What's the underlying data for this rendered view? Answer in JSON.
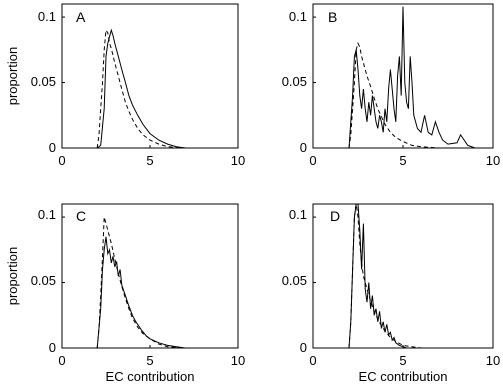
{
  "chart_data": [
    {
      "type": "line",
      "panel": "A",
      "xlabel": "",
      "ylabel": "proportion",
      "xlim": [
        0,
        10
      ],
      "ylim": [
        0,
        0.11
      ],
      "xticks": [
        "0",
        "5",
        "10"
      ],
      "yticks": [
        "0",
        "0.05",
        "0.1"
      ],
      "series": [
        {
          "style": "solid",
          "x": [
            2.0,
            2.2,
            2.4,
            2.5,
            2.6,
            2.7,
            2.8,
            2.9,
            3.0,
            3.2,
            3.4,
            3.6,
            3.8,
            4.0,
            4.3,
            4.6,
            5.0,
            5.5,
            6.0,
            6.5,
            7.0,
            8.0,
            10.0
          ],
          "y": [
            0,
            0.002,
            0.03,
            0.07,
            0.08,
            0.085,
            0.09,
            0.086,
            0.08,
            0.07,
            0.06,
            0.05,
            0.04,
            0.033,
            0.025,
            0.018,
            0.011,
            0.006,
            0.003,
            0.001,
            0,
            0,
            0
          ]
        },
        {
          "style": "dashed",
          "x": [
            2.0,
            2.1,
            2.2,
            2.3,
            2.4,
            2.5,
            2.6,
            2.7,
            2.8,
            3.0,
            3.2,
            3.4,
            3.6,
            3.8,
            4.0,
            4.3,
            4.6,
            5.0,
            5.5,
            6.0,
            7.0,
            10.0
          ],
          "y": [
            0,
            0.01,
            0.03,
            0.05,
            0.075,
            0.09,
            0.088,
            0.08,
            0.076,
            0.065,
            0.055,
            0.045,
            0.035,
            0.028,
            0.022,
            0.015,
            0.01,
            0.006,
            0.003,
            0.001,
            0,
            0
          ]
        }
      ]
    },
    {
      "type": "line",
      "panel": "B",
      "xlabel": "",
      "ylabel": "",
      "xlim": [
        0,
        10
      ],
      "ylim": [
        0,
        0.11
      ],
      "xticks": [
        "0",
        "5",
        "10"
      ],
      "yticks": [
        "0",
        "0.05",
        "0.1"
      ],
      "series": [
        {
          "style": "solid",
          "x": [
            2.0,
            2.2,
            2.3,
            2.4,
            2.5,
            2.6,
            2.7,
            2.8,
            2.9,
            3.0,
            3.1,
            3.2,
            3.3,
            3.4,
            3.5,
            3.6,
            3.7,
            3.8,
            3.9,
            4.0,
            4.1,
            4.2,
            4.3,
            4.4,
            4.5,
            4.6,
            4.7,
            4.8,
            4.9,
            5.0,
            5.1,
            5.2,
            5.3,
            5.4,
            5.5,
            5.6,
            5.8,
            6.0,
            6.2,
            6.4,
            6.6,
            6.8,
            7.0,
            7.2,
            7.5,
            8.0,
            8.2,
            8.4,
            8.6,
            9.0,
            10.0
          ],
          "y": [
            0,
            0.04,
            0.07,
            0.075,
            0.06,
            0.04,
            0.03,
            0.045,
            0.03,
            0.02,
            0.035,
            0.025,
            0.04,
            0.03,
            0.02,
            0.015,
            0.025,
            0.02,
            0.012,
            0.03,
            0.02,
            0.045,
            0.06,
            0.045,
            0.03,
            0.02,
            0.055,
            0.07,
            0.04,
            0.108,
            0.05,
            0.035,
            0.03,
            0.07,
            0.05,
            0.025,
            0.015,
            0.012,
            0.025,
            0.012,
            0.01,
            0.02,
            0.012,
            0.006,
            0.003,
            0.004,
            0.01,
            0.006,
            0.002,
            0,
            0
          ]
        },
        {
          "style": "dashed",
          "x": [
            2.0,
            2.1,
            2.2,
            2.3,
            2.4,
            2.5,
            2.6,
            2.7,
            2.8,
            3.0,
            3.2,
            3.4,
            3.6,
            3.8,
            4.0,
            4.3,
            4.6,
            5.0,
            5.5,
            6.0,
            7.0,
            10.0
          ],
          "y": [
            0,
            0.01,
            0.03,
            0.05,
            0.075,
            0.08,
            0.077,
            0.07,
            0.065,
            0.055,
            0.047,
            0.038,
            0.03,
            0.024,
            0.018,
            0.012,
            0.008,
            0.005,
            0.002,
            0.001,
            0,
            0
          ]
        }
      ]
    },
    {
      "type": "line",
      "panel": "C",
      "xlabel": "EC contribution",
      "ylabel": "proportion",
      "xlim": [
        0,
        10
      ],
      "ylim": [
        0,
        0.11
      ],
      "xticks": [
        "0",
        "5",
        "10"
      ],
      "yticks": [
        "0",
        "0.05",
        "0.1"
      ],
      "series": [
        {
          "style": "solid",
          "x": [
            2.0,
            2.2,
            2.3,
            2.4,
            2.5,
            2.6,
            2.7,
            2.8,
            2.9,
            3.0,
            3.1,
            3.2,
            3.3,
            3.4,
            3.6,
            3.8,
            4.0,
            4.2,
            4.5,
            4.8,
            5.0,
            5.5,
            6.0,
            6.5,
            7.0,
            10.0
          ],
          "y": [
            0,
            0.03,
            0.06,
            0.075,
            0.085,
            0.072,
            0.075,
            0.065,
            0.07,
            0.062,
            0.066,
            0.055,
            0.06,
            0.048,
            0.04,
            0.032,
            0.025,
            0.02,
            0.014,
            0.009,
            0.007,
            0.004,
            0.002,
            0.001,
            0,
            0
          ]
        },
        {
          "style": "dashed",
          "x": [
            2.0,
            2.1,
            2.2,
            2.3,
            2.4,
            2.5,
            2.6,
            2.7,
            2.8,
            3.0,
            3.2,
            3.4,
            3.6,
            3.8,
            4.0,
            4.3,
            4.6,
            5.0,
            5.5,
            6.0,
            7.0,
            10.0
          ],
          "y": [
            0,
            0.015,
            0.04,
            0.07,
            0.1,
            0.095,
            0.09,
            0.085,
            0.08,
            0.068,
            0.057,
            0.047,
            0.038,
            0.03,
            0.023,
            0.016,
            0.011,
            0.007,
            0.003,
            0.001,
            0,
            0
          ]
        }
      ]
    },
    {
      "type": "line",
      "panel": "D",
      "xlabel": "EC contribution",
      "ylabel": "",
      "xlim": [
        0,
        10
      ],
      "ylim": [
        0,
        0.11
      ],
      "xticks": [
        "0",
        "5",
        "10"
      ],
      "yticks": [
        "0",
        "0.05",
        "0.1"
      ],
      "series": [
        {
          "style": "solid",
          "x": [
            2.0,
            2.1,
            2.2,
            2.3,
            2.4,
            2.5,
            2.6,
            2.7,
            2.8,
            2.9,
            3.0,
            3.1,
            3.2,
            3.3,
            3.4,
            3.5,
            3.6,
            3.7,
            3.8,
            3.9,
            4.0,
            4.1,
            4.2,
            4.3,
            4.4,
            4.5,
            4.6,
            4.8,
            5.0,
            5.2,
            5.5,
            6.0,
            7.0,
            10.0
          ],
          "y": [
            0,
            0.02,
            0.06,
            0.1,
            0.11,
            0.11,
            0.09,
            0.06,
            0.095,
            0.045,
            0.035,
            0.05,
            0.03,
            0.04,
            0.025,
            0.03,
            0.02,
            0.028,
            0.015,
            0.02,
            0.012,
            0.018,
            0.01,
            0.012,
            0.006,
            0.008,
            0.004,
            0.002,
            0.001,
            0,
            0,
            0,
            0,
            0
          ]
        },
        {
          "style": "dashed",
          "x": [
            2.0,
            2.1,
            2.2,
            2.3,
            2.4,
            2.5,
            2.6,
            2.7,
            2.8,
            3.0,
            3.2,
            3.4,
            3.6,
            3.8,
            4.0,
            4.3,
            4.6,
            5.0,
            5.5,
            6.0,
            7.0,
            10.0
          ],
          "y": [
            0,
            0.02,
            0.06,
            0.1,
            0.11,
            0.1,
            0.08,
            0.065,
            0.055,
            0.045,
            0.036,
            0.028,
            0.022,
            0.017,
            0.013,
            0.008,
            0.005,
            0.002,
            0.001,
            0,
            0,
            0
          ]
        }
      ]
    }
  ],
  "panels": [
    {
      "letter": "A"
    },
    {
      "letter": "B"
    },
    {
      "letter": "C"
    },
    {
      "letter": "D"
    }
  ]
}
